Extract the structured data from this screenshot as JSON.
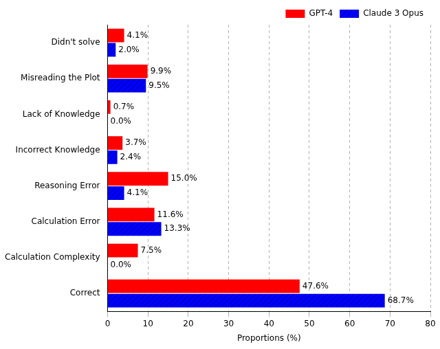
{
  "chart_data": {
    "type": "bar",
    "orientation": "horizontal",
    "categories": [
      "Didn't solve",
      "Misreading the Plot",
      "Lack of Knowledge",
      "Incorrect Knowledge",
      "Reasoning Error",
      "Calculation Error",
      "Calculation Complexity",
      "Correct"
    ],
    "series": [
      {
        "name": "GPT-4",
        "color": "#ff0000",
        "values": [
          4.1,
          9.9,
          0.7,
          3.7,
          15.0,
          11.6,
          7.5,
          47.6
        ],
        "value_labels": [
          "4.1%",
          "9.9%",
          "0.7%",
          "3.7%",
          "15.0%",
          "11.6%",
          "7.5%",
          "47.6%"
        ]
      },
      {
        "name": "Claude 3 Opus",
        "color": "#0000ff",
        "values": [
          2.0,
          9.5,
          0.0,
          2.4,
          4.1,
          13.3,
          0.0,
          68.7
        ],
        "value_labels": [
          "2.0%",
          "9.5%",
          "0.0%",
          "2.4%",
          "4.1%",
          "13.3%",
          "0.0%",
          "68.7%"
        ]
      }
    ],
    "x_label": "Proportions (%)",
    "xlim": [
      0,
      80
    ],
    "xticks": [
      0,
      10,
      20,
      30,
      40,
      50,
      60,
      70,
      80
    ],
    "grid": true,
    "legend": "upper right",
    "data_labels": true
  }
}
